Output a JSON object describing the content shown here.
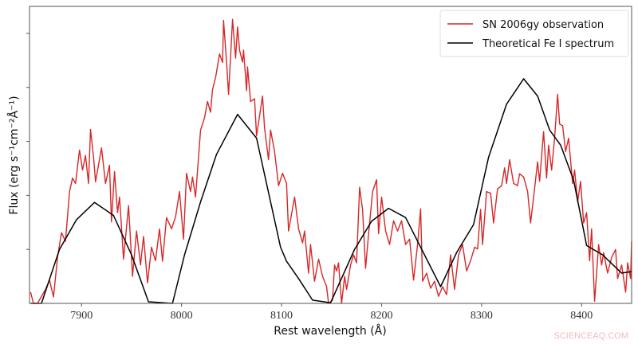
{
  "chart_data": {
    "type": "line",
    "title": "",
    "xlabel": "Rest wavelength (Å)",
    "ylabel": "Flux (erg s⁻¹cm⁻²Å⁻¹)",
    "xlim": [
      7848,
      8450
    ],
    "ylim": [
      0,
      5.5
    ],
    "y_units_note_free": true,
    "xticks": [
      7900,
      8000,
      8100,
      8200,
      8300,
      8400
    ],
    "yticks": [
      1,
      2,
      3,
      4,
      5
    ],
    "ytick_labels_shown": false,
    "grid": false,
    "legend_placement": "top-right",
    "series": [
      {
        "name": "SN 2006gy observation",
        "color": "#d62728",
        "x": [
          7849,
          7852,
          7856,
          7864,
          7868,
          7872,
          7876,
          7880,
          7884,
          7888,
          7891,
          7894,
          7898,
          7901,
          7904,
          7907,
          7909,
          7912,
          7914,
          7920,
          7924,
          7928,
          7930,
          7933,
          7936,
          7938,
          7942,
          7947,
          7951,
          7955,
          7959,
          7962,
          7966,
          7970,
          7974,
          7978,
          7981,
          7985,
          7990,
          7994,
          7998,
          8002,
          8005,
          8009,
          8011,
          8014,
          8019,
          8023,
          8026,
          8029,
          8031,
          8034,
          8038,
          8041,
          8042,
          8045,
          8047,
          8051,
          8054,
          8056,
          8058,
          8061,
          8062,
          8065,
          8066,
          8069,
          8073,
          8075,
          8081,
          8083,
          8087,
          8089,
          8093,
          8097,
          8101,
          8105,
          8107,
          8113,
          8117,
          8121,
          8123,
          8127,
          8129,
          8133,
          8137,
          8141,
          8145,
          8147,
          8151,
          8153,
          8155,
          8157,
          8160,
          8163,
          8165,
          8169,
          8172,
          8175,
          8178,
          8181,
          8184,
          8187,
          8191,
          8195,
          8197,
          8200,
          8204,
          8208,
          8212,
          8216,
          8220,
          8224,
          8228,
          8232,
          8236,
          8239,
          8241,
          8245,
          8249,
          8253,
          8257,
          8261,
          8265,
          8269,
          8273,
          8277,
          8281,
          8285,
          8289,
          8293,
          8296,
          8299,
          8301,
          8305,
          8309,
          8312,
          8316,
          8320,
          8323,
          8325,
          8328,
          8332,
          8336,
          8338,
          8342,
          8346,
          8349,
          8353,
          8356,
          8358,
          8362,
          8365,
          8367,
          8370,
          8373,
          8376,
          8378,
          8381,
          8384,
          8387,
          8391,
          8393,
          8396,
          8399,
          8402,
          8405,
          8408,
          8410,
          8413,
          8417,
          8420,
          8422,
          8426,
          8430,
          8434,
          8436,
          8440,
          8444,
          8446,
          8449,
          8450
        ],
        "y": [
          0.21,
          0,
          0,
          0.26,
          0.43,
          0.12,
          0.85,
          1.31,
          1.15,
          2.07,
          2.32,
          2.22,
          2.84,
          2.47,
          2.74,
          2.22,
          3.22,
          2.71,
          2.25,
          2.88,
          2.22,
          2.56,
          1.51,
          2.44,
          1.68,
          1.97,
          0.82,
          1.81,
          0.5,
          1.34,
          0.71,
          1.24,
          0.38,
          1.04,
          0.79,
          1.38,
          0.78,
          1.59,
          1.38,
          1.6,
          2.07,
          1.19,
          2.41,
          2.07,
          2.34,
          1.97,
          3.21,
          3.44,
          3.74,
          3.54,
          3.96,
          4.18,
          4.62,
          4.46,
          5.24,
          4.47,
          3.87,
          5.26,
          4.54,
          5.12,
          4.69,
          4.47,
          4.69,
          3.94,
          4.38,
          3.74,
          3.79,
          3.1,
          3.84,
          3.25,
          2.66,
          3.21,
          2.81,
          2.18,
          2.41,
          2.22,
          1.34,
          1.97,
          1.38,
          1.12,
          1.34,
          0.56,
          1.09,
          0.41,
          0.82,
          0.5,
          0.31,
          0,
          0.06,
          0.71,
          0.6,
          0.75,
          0,
          0.5,
          0.26,
          0.71,
          0.9,
          0.75,
          2.15,
          1.74,
          0.65,
          1.29,
          2.07,
          2.29,
          1.29,
          1.97,
          1.34,
          1.09,
          1.53,
          1.34,
          1.53,
          1.09,
          1.19,
          0.43,
          1.09,
          1.75,
          0.41,
          0.56,
          0.28,
          0.41,
          0.13,
          0.31,
          0.16,
          0.9,
          0.26,
          0.9,
          1.09,
          0.6,
          0.79,
          1.04,
          1.01,
          1.74,
          1.09,
          2.07,
          2.04,
          1.49,
          2.12,
          2.18,
          2.51,
          2.22,
          2.66,
          2.22,
          2.18,
          2.4,
          2.34,
          2.07,
          1.49,
          2.12,
          2.62,
          2.26,
          3.18,
          2.32,
          2.93,
          2.47,
          3.06,
          3.87,
          3.32,
          3.29,
          2.81,
          3.06,
          2.22,
          2.47,
          1.88,
          2.26,
          1.49,
          1.68,
          0.79,
          1.38,
          0.04,
          1.09,
          0.71,
          0.94,
          0.56,
          0.85,
          1.0,
          0.46,
          0.71,
          0.21,
          0.75,
          0.46,
          1.15
        ]
      },
      {
        "name": "Theoretical Fe I spectrum",
        "color": "#000000",
        "x": [
          7849,
          7860,
          7878,
          7895,
          7913,
          7932,
          7950,
          7967,
          7991,
          8003,
          8019,
          8035,
          8056,
          8075,
          8099,
          8105,
          8117,
          8131,
          8149,
          8173,
          8190,
          8207,
          8224,
          8259,
          8275,
          8292,
          8307,
          8325,
          8342,
          8356,
          8368,
          8379,
          8392,
          8405,
          8421,
          8440,
          8450
        ],
        "y": [
          0,
          0,
          1.0,
          1.55,
          1.87,
          1.63,
          0.9,
          0.03,
          0,
          0.9,
          1.88,
          2.76,
          3.5,
          3.06,
          1.04,
          0.78,
          0.46,
          0.06,
          0.01,
          1.0,
          1.52,
          1.76,
          1.59,
          0.31,
          0.94,
          1.46,
          2.71,
          3.69,
          4.16,
          3.84,
          3.21,
          2.93,
          2.28,
          1.07,
          0.9,
          0.56,
          0.59
        ]
      }
    ]
  },
  "watermark": "SCIENCEAQ.COM"
}
